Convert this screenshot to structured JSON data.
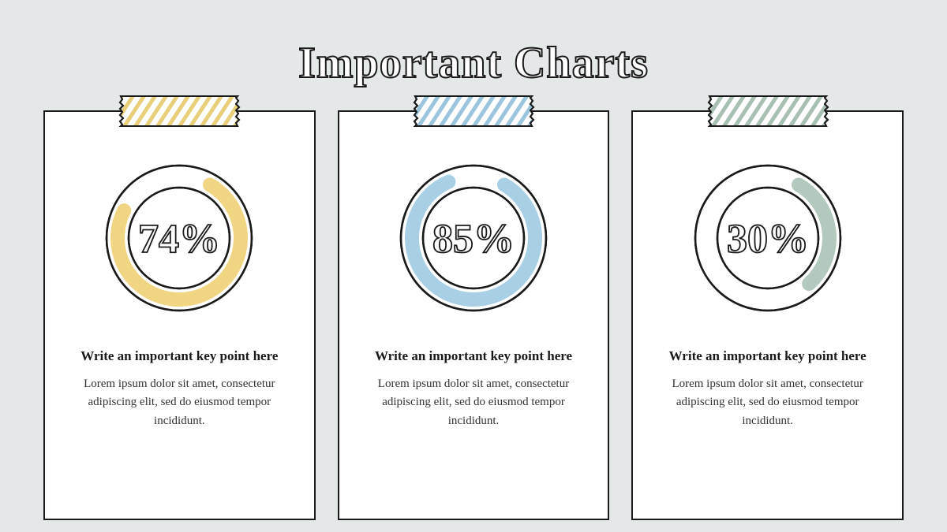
{
  "title": "Important Charts",
  "background_color": "#e4e8e9",
  "card_background": "#ffffff",
  "card_border": "#1a1a1a",
  "title_stroke": "#1a1a1a",
  "title_fill": "#ffffff",
  "title_fontsize": 56,
  "pct_fontsize": 52,
  "keypoint_fontsize": 17,
  "body_fontsize": 15,
  "ring_outer_radius": 92,
  "ring_inner_radius": 64,
  "ring_stroke_width": 18,
  "cards": [
    {
      "pct_label": "74%",
      "pct_value": 74,
      "accent_color": "#f0d582",
      "tape_stripe_color": "#e8d07a",
      "keypoint": "Write an important key point here",
      "body": "Lorem ipsum dolor sit amet, consectetur adipiscing elit, sed do eiusmod tempor incididunt."
    },
    {
      "pct_label": "85%",
      "pct_value": 85,
      "accent_color": "#a8cfe3",
      "tape_stripe_color": "#9bc5dc",
      "keypoint": "Write an important key point here",
      "body": "Lorem ipsum dolor sit amet, consectetur adipiscing elit, sed do eiusmod tempor incididunt."
    },
    {
      "pct_label": "30%",
      "pct_value": 30,
      "accent_color": "#b4c9bd",
      "tape_stripe_color": "#a8c0b2",
      "keypoint": "Write an important key point here",
      "body": "Lorem ipsum dolor sit amet, consectetur adipiscing elit, sed do eiusmod tempor incididunt."
    }
  ]
}
